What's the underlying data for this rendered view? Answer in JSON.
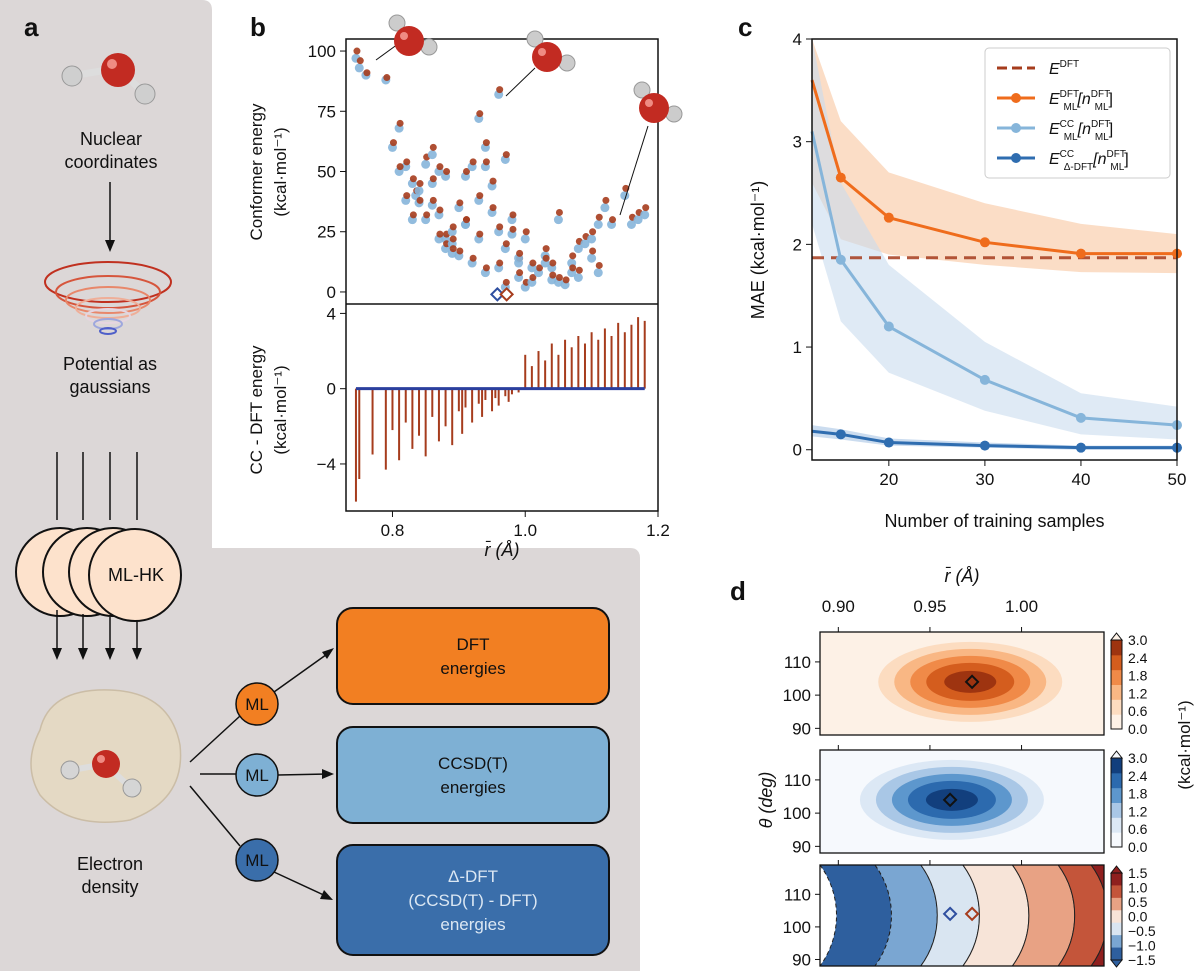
{
  "panels": {
    "a": "a",
    "b": "b",
    "c": "c",
    "d": "d"
  },
  "flow": {
    "nuclear": [
      "Nuclear",
      "coordinates"
    ],
    "potential": [
      "Potential as",
      "gaussians"
    ],
    "mlhk": "ML-HK",
    "density": [
      "Electron",
      "density"
    ],
    "ml": "ML",
    "boxes": [
      {
        "lines": [
          "DFT",
          "energies"
        ],
        "fill": "#f27f22",
        "text": "#111111"
      },
      {
        "lines": [
          "CCSD(T)",
          "energies"
        ],
        "fill": "#7eb0d4",
        "text": "#111111"
      },
      {
        "lines": [
          "Δ-DFT",
          "(CCSD(T) - DFT)",
          "energies"
        ],
        "fill": "#3a6eaa",
        "text": "#dbe7f3"
      }
    ],
    "ml_colors": [
      "#f27f22",
      "#7eb0d4",
      "#3a6eaa"
    ]
  },
  "colors": {
    "dft": "#a63c1d",
    "ml_dft": "#ef6c1c",
    "ml_cc": "#86b5da",
    "delta": "#2f6db0",
    "panel_bg": "#dcd7d7"
  },
  "chart_data": [
    {
      "id": "b-top",
      "type": "scatter",
      "ylabel": [
        "Conformer energy",
        "(kcal·mol⁻¹)"
      ],
      "xlim": [
        0.73,
        1.2
      ],
      "ylim": [
        -5,
        105
      ],
      "yticks": [
        "0",
        "25",
        "50",
        "75",
        "100"
      ],
      "yticks_v": [
        0,
        25,
        50,
        75,
        100
      ],
      "x": [
        0.745,
        0.75,
        0.76,
        0.79,
        0.8,
        0.81,
        0.82,
        0.83,
        0.835,
        0.84,
        0.85,
        0.85,
        0.86,
        0.86,
        0.87,
        0.87,
        0.88,
        0.88,
        0.89,
        0.89,
        0.9,
        0.9,
        0.91,
        0.91,
        0.92,
        0.92,
        0.93,
        0.93,
        0.94,
        0.94,
        0.95,
        0.95,
        0.96,
        0.96,
        0.97,
        0.97,
        0.98,
        0.98,
        0.99,
        0.99,
        1.0,
        1.0,
        1.01,
        1.02,
        1.03,
        1.04,
        1.05,
        1.06,
        1.07,
        1.08,
        1.09,
        1.1,
        1.11,
        1.12,
        1.13,
        1.15,
        1.16,
        1.17,
        1.18,
        0.81,
        0.82,
        0.83,
        0.87,
        0.88,
        0.93,
        0.96,
        0.99,
        1.04,
        1.07,
        1.1,
        0.84,
        0.86,
        0.89,
        0.91,
        0.94,
        0.97,
        1.01,
        1.03,
        1.05,
        1.08,
        1.11
      ],
      "cc": [
        97,
        93,
        90,
        88,
        60,
        68,
        52,
        45,
        40,
        37,
        30,
        53,
        57,
        45,
        32,
        50,
        22,
        18,
        25,
        20,
        35,
        15,
        48,
        28,
        52,
        12,
        38,
        22,
        8,
        60,
        33,
        44,
        10,
        82,
        18,
        2,
        24,
        30,
        6,
        12,
        22,
        2,
        4,
        8,
        15,
        10,
        30,
        3,
        12,
        18,
        20,
        22,
        28,
        35,
        28,
        40,
        28,
        30,
        32,
        50,
        38,
        30,
        22,
        48,
        72,
        25,
        14,
        5,
        8,
        14,
        42,
        36,
        16,
        28,
        52,
        55,
        10,
        12,
        4,
        6,
        8
      ],
      "dft": [
        100,
        96,
        91,
        89,
        62,
        70,
        54,
        47,
        42,
        38,
        32,
        56,
        60,
        47,
        34,
        52,
        24,
        20,
        27,
        22,
        37,
        17,
        50,
        30,
        54,
        14,
        40,
        24,
        10,
        62,
        35,
        46,
        12,
        84,
        20,
        4,
        26,
        32,
        8,
        14,
        25,
        4,
        6,
        10,
        18,
        12,
        33,
        5,
        15,
        21,
        23,
        25,
        31,
        38,
        30,
        43,
        31,
        33,
        35,
        52,
        40,
        32,
        24,
        50,
        74,
        27,
        16,
        7,
        10,
        17,
        45,
        38,
        18,
        30,
        54,
        57,
        12,
        14,
        6,
        9,
        11
      ],
      "diamonds": {
        "cc_x": 0.958,
        "dft_x": 0.972,
        "y": -1
      }
    },
    {
      "id": "b-bottom",
      "type": "bar",
      "xlabel": "r̄ (Å)",
      "ylabel": [
        "CC - DFT energy",
        "(kcal·mol⁻¹)"
      ],
      "xlim": [
        0.73,
        1.2
      ],
      "ylim": [
        -6.5,
        4.5
      ],
      "xticks": [
        "0.8",
        "1.0",
        "1.2"
      ],
      "xticks_v": [
        0.8,
        1.0,
        1.2
      ],
      "yticks": [
        "−4",
        "0",
        "4"
      ],
      "yticks_v": [
        -4,
        0,
        4
      ],
      "x": [
        0.745,
        0.75,
        0.77,
        0.79,
        0.8,
        0.81,
        0.82,
        0.83,
        0.84,
        0.85,
        0.86,
        0.87,
        0.88,
        0.89,
        0.9,
        0.905,
        0.91,
        0.92,
        0.93,
        0.935,
        0.94,
        0.95,
        0.955,
        0.96,
        0.97,
        0.975,
        0.98,
        0.99,
        1.0,
        1.01,
        1.02,
        1.03,
        1.04,
        1.05,
        1.06,
        1.07,
        1.08,
        1.09,
        1.1,
        1.11,
        1.12,
        1.13,
        1.14,
        1.15,
        1.16,
        1.17,
        1.18
      ],
      "y": [
        -6.0,
        -4.8,
        -3.5,
        -4.3,
        -2.2,
        -3.8,
        -1.8,
        -3.2,
        -2.5,
        -3.6,
        -1.5,
        -2.8,
        -2.0,
        -3.0,
        -1.2,
        -2.4,
        -1.0,
        -1.8,
        -0.8,
        -1.5,
        -0.6,
        -1.2,
        -0.5,
        -0.9,
        -0.4,
        -0.7,
        -0.3,
        -0.2,
        1.8,
        1.2,
        2.0,
        1.5,
        2.4,
        1.8,
        2.6,
        2.2,
        2.8,
        2.4,
        3.0,
        2.6,
        3.2,
        2.8,
        3.5,
        3.0,
        3.4,
        3.8,
        3.6
      ]
    },
    {
      "id": "c",
      "type": "line",
      "xlabel": "Number of training samples",
      "ylabel": "MAE (kcal·mol⁻¹)",
      "xlim": [
        12,
        50
      ],
      "ylim": [
        -0.1,
        4
      ],
      "xticks": [
        "20",
        "30",
        "40",
        "50"
      ],
      "xticks_v": [
        20,
        30,
        40,
        50
      ],
      "yticks": [
        "0",
        "1",
        "2",
        "3",
        "4"
      ],
      "yticks_v": [
        0,
        1,
        2,
        3,
        4
      ],
      "x": [
        12,
        15,
        20,
        30,
        40,
        50
      ],
      "dft_line": 1.87,
      "series": [
        {
          "name": "E^DFT_ML[n^DFT_ML]",
          "values": [
            3.6,
            2.65,
            2.26,
            2.02,
            1.91,
            1.91
          ],
          "lo": [
            2.6,
            2.05,
            1.9,
            1.8,
            1.73,
            1.72
          ],
          "hi": [
            4.9,
            3.2,
            2.7,
            2.4,
            2.2,
            2.1
          ]
        },
        {
          "name": "E^CC_ML[n^DFT_ML]",
          "values": [
            3.1,
            1.85,
            1.2,
            0.68,
            0.31,
            0.24
          ],
          "lo": [
            2.2,
            1.25,
            0.75,
            0.38,
            0.15,
            0.1
          ],
          "hi": [
            4.1,
            2.6,
            1.8,
            1.05,
            0.55,
            0.42
          ]
        },
        {
          "name": "E^CC_Δ-DFT[n^DFT_ML]",
          "values": [
            0.18,
            0.15,
            0.07,
            0.04,
            0.02,
            0.02
          ],
          "lo": [
            0.13,
            0.1,
            0.04,
            0.02,
            0.0,
            0.0
          ],
          "hi": [
            0.24,
            0.2,
            0.11,
            0.07,
            0.04,
            0.04
          ]
        }
      ],
      "legend": [
        {
          "main": "E",
          "sup": "DFT",
          "sub": "",
          "arg": ""
        },
        {
          "main": "E",
          "sup": "DFT",
          "sub": "ML",
          "arg": "[n",
          "argsup": "DFT",
          "argsub": "ML",
          "end": "]"
        },
        {
          "main": "E",
          "sup": "CC",
          "sub": "ML",
          "arg": "[n",
          "argsup": "DFT",
          "argsub": "ML",
          "end": "]"
        },
        {
          "main": "E",
          "sup": "CC",
          "sub": "Δ-DFT",
          "arg": "[n",
          "argsup": "DFT",
          "argsub": "ML",
          "end": "]"
        }
      ]
    },
    {
      "id": "d",
      "type": "heatmap",
      "xlabel": "r̄ (Å)",
      "ylabel": "θ (deg)",
      "cbar_label": "(kcal·mol⁻¹)",
      "xlim": [
        0.89,
        1.045
      ],
      "ylim": [
        88,
        119
      ],
      "xticks": [
        "0.90",
        "0.95",
        "1.00"
      ],
      "xticks_v": [
        0.9,
        0.95,
        1.0
      ],
      "yticks": [
        "110",
        "100",
        "90"
      ],
      "yticks_v": [
        110,
        100,
        90
      ],
      "cbar_ticks_pos": [
        "3.0",
        "2.4",
        "1.8",
        "1.2",
        "0.6",
        "0.0"
      ],
      "cbar_ticks_diff": [
        "1.5",
        "1.0",
        "0.5",
        "0.0",
        "−0.5",
        "−1.0",
        "−1.5"
      ],
      "markers": {
        "dft_x": 0.973,
        "cc_x": 0.961,
        "y": 104
      }
    }
  ]
}
